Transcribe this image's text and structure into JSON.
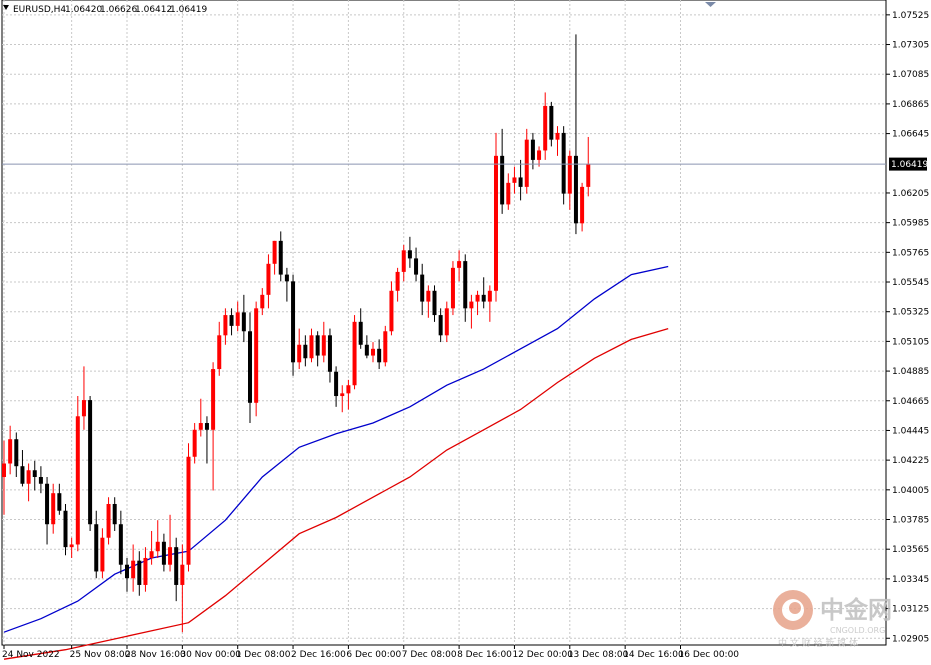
{
  "header": {
    "symbol": "EURUSD,H4",
    "open": "1.06420",
    "high": "1.06626",
    "low": "1.06412",
    "close": "1.06419"
  },
  "colors": {
    "bull": "#ff0000",
    "bear": "#000000",
    "ma_fast": "#0000cc",
    "ma_slow": "#e00000",
    "grid": "#c8c8c8",
    "bid_line": "#8a95b0"
  },
  "watermark": {
    "brand": "中金网",
    "domain": "CNGOLD.ORG",
    "tagline": "中 文 财 经 新 媒 体"
  },
  "chart_data": {
    "type": "candlestick",
    "ylim": [
      1.02855,
      1.07635
    ],
    "current_price": 1.06419,
    "current_price_label": "1.06419",
    "y_ticks": [
      {
        "label": "1.07525",
        "value": 1.07525
      },
      {
        "label": "1.07305",
        "value": 1.07305
      },
      {
        "label": "1.07085",
        "value": 1.07085
      },
      {
        "label": "1.06865",
        "value": 1.06865
      },
      {
        "label": "1.06645",
        "value": 1.06645
      },
      {
        "label": "1.06205",
        "value": 1.06205
      },
      {
        "label": "1.05985",
        "value": 1.05985
      },
      {
        "label": "1.05765",
        "value": 1.05765
      },
      {
        "label": "1.05545",
        "value": 1.05545
      },
      {
        "label": "1.05325",
        "value": 1.05325
      },
      {
        "label": "1.05105",
        "value": 1.05105
      },
      {
        "label": "1.04885",
        "value": 1.04885
      },
      {
        "label": "1.04665",
        "value": 1.04665
      },
      {
        "label": "1.04445",
        "value": 1.04445
      },
      {
        "label": "1.04225",
        "value": 1.04225
      },
      {
        "label": "1.04005",
        "value": 1.04005
      },
      {
        "label": "1.03785",
        "value": 1.03785
      },
      {
        "label": "1.03565",
        "value": 1.03565
      },
      {
        "label": "1.03345",
        "value": 1.03345
      },
      {
        "label": "1.03125",
        "value": 1.03125
      },
      {
        "label": "1.02905",
        "value": 1.02905
      }
    ],
    "x_labels": [
      {
        "label": "24 Nov 2022",
        "index": 0
      },
      {
        "label": "25 Nov 08:00",
        "index": 11
      },
      {
        "label": "28 Nov 16:00",
        "index": 20
      },
      {
        "label": "30 Nov 00:00",
        "index": 29
      },
      {
        "label": "1 Dec 08:00",
        "index": 38
      },
      {
        "label": "2 Dec 16:00",
        "index": 47
      },
      {
        "label": "6 Dec 00:00",
        "index": 56
      },
      {
        "label": "7 Dec 08:00",
        "index": 65
      },
      {
        "label": "8 Dec 16:00",
        "index": 74
      },
      {
        "label": "12 Dec 00:00",
        "index": 83
      },
      {
        "label": "13 Dec 08:00",
        "index": 92
      },
      {
        "label": "14 Dec 16:00",
        "index": 101
      },
      {
        "label": "16 Dec 00:00",
        "index": 110
      }
    ],
    "candles": [
      {
        "o": 1.041,
        "h": 1.0437,
        "l": 1.0382,
        "c": 1.042
      },
      {
        "o": 1.042,
        "h": 1.0448,
        "l": 1.0412,
        "c": 1.0438
      },
      {
        "o": 1.0438,
        "h": 1.0443,
        "l": 1.041,
        "c": 1.0418
      },
      {
        "o": 1.0418,
        "h": 1.043,
        "l": 1.0403,
        "c": 1.0405
      },
      {
        "o": 1.0405,
        "h": 1.042,
        "l": 1.0392,
        "c": 1.0415
      },
      {
        "o": 1.0415,
        "h": 1.0422,
        "l": 1.04,
        "c": 1.041
      },
      {
        "o": 1.041,
        "h": 1.0418,
        "l": 1.0398,
        "c": 1.0405
      },
      {
        "o": 1.0405,
        "h": 1.041,
        "l": 1.036,
        "c": 1.0375
      },
      {
        "o": 1.0375,
        "h": 1.0405,
        "l": 1.0368,
        "c": 1.0398
      },
      {
        "o": 1.0398,
        "h": 1.0405,
        "l": 1.0382,
        "c": 1.0385
      },
      {
        "o": 1.0385,
        "h": 1.039,
        "l": 1.0352,
        "c": 1.0358
      },
      {
        "o": 1.0358,
        "h": 1.0365,
        "l": 1.035,
        "c": 1.036
      },
      {
        "o": 1.036,
        "h": 1.047,
        "l": 1.0355,
        "c": 1.0455
      },
      {
        "o": 1.0455,
        "h": 1.0492,
        "l": 1.0445,
        "c": 1.0467
      },
      {
        "o": 1.0467,
        "h": 1.047,
        "l": 1.037,
        "c": 1.0375
      },
      {
        "o": 1.0375,
        "h": 1.0385,
        "l": 1.0335,
        "c": 1.034
      },
      {
        "o": 1.034,
        "h": 1.0372,
        "l": 1.0335,
        "c": 1.0365
      },
      {
        "o": 1.0365,
        "h": 1.0395,
        "l": 1.036,
        "c": 1.039
      },
      {
        "o": 1.039,
        "h": 1.0395,
        "l": 1.037,
        "c": 1.0375
      },
      {
        "o": 1.0375,
        "h": 1.0385,
        "l": 1.0338,
        "c": 1.0345
      },
      {
        "o": 1.0345,
        "h": 1.035,
        "l": 1.0325,
        "c": 1.0335
      },
      {
        "o": 1.0335,
        "h": 1.036,
        "l": 1.0325,
        "c": 1.0348
      },
      {
        "o": 1.0348,
        "h": 1.0355,
        "l": 1.0322,
        "c": 1.033
      },
      {
        "o": 1.033,
        "h": 1.0358,
        "l": 1.0325,
        "c": 1.035
      },
      {
        "o": 1.035,
        "h": 1.037,
        "l": 1.0345,
        "c": 1.0355
      },
      {
        "o": 1.0355,
        "h": 1.0378,
        "l": 1.035,
        "c": 1.0362
      },
      {
        "o": 1.0362,
        "h": 1.0368,
        "l": 1.034,
        "c": 1.0345
      },
      {
        "o": 1.0345,
        "h": 1.0382,
        "l": 1.034,
        "c": 1.0358
      },
      {
        "o": 1.0358,
        "h": 1.0365,
        "l": 1.0318,
        "c": 1.033
      },
      {
        "o": 1.033,
        "h": 1.036,
        "l": 1.0295,
        "c": 1.0345
      },
      {
        "o": 1.0345,
        "h": 1.0435,
        "l": 1.034,
        "c": 1.0425
      },
      {
        "o": 1.0425,
        "h": 1.045,
        "l": 1.042,
        "c": 1.0445
      },
      {
        "o": 1.0445,
        "h": 1.0468,
        "l": 1.044,
        "c": 1.045
      },
      {
        "o": 1.045,
        "h": 1.0455,
        "l": 1.042,
        "c": 1.0445
      },
      {
        "o": 1.0445,
        "h": 1.0495,
        "l": 1.04,
        "c": 1.049
      },
      {
        "o": 1.049,
        "h": 1.0525,
        "l": 1.0485,
        "c": 1.0515
      },
      {
        "o": 1.0515,
        "h": 1.0535,
        "l": 1.0508,
        "c": 1.053
      },
      {
        "o": 1.053,
        "h": 1.0535,
        "l": 1.0515,
        "c": 1.0522
      },
      {
        "o": 1.0522,
        "h": 1.054,
        "l": 1.0518,
        "c": 1.0532
      },
      {
        "o": 1.0532,
        "h": 1.0545,
        "l": 1.051,
        "c": 1.0518
      },
      {
        "o": 1.0518,
        "h": 1.0532,
        "l": 1.045,
        "c": 1.0465
      },
      {
        "o": 1.0465,
        "h": 1.054,
        "l": 1.0455,
        "c": 1.0535
      },
      {
        "o": 1.0535,
        "h": 1.055,
        "l": 1.053,
        "c": 1.0545
      },
      {
        "o": 1.0545,
        "h": 1.0575,
        "l": 1.0535,
        "c": 1.0568
      },
      {
        "o": 1.0568,
        "h": 1.0585,
        "l": 1.056,
        "c": 1.0585
      },
      {
        "o": 1.0585,
        "h": 1.0592,
        "l": 1.0555,
        "c": 1.056
      },
      {
        "o": 1.056,
        "h": 1.0565,
        "l": 1.054,
        "c": 1.0555
      },
      {
        "o": 1.0555,
        "h": 1.056,
        "l": 1.0485,
        "c": 1.0495
      },
      {
        "o": 1.0495,
        "h": 1.052,
        "l": 1.049,
        "c": 1.0508
      },
      {
        "o": 1.0508,
        "h": 1.0515,
        "l": 1.0492,
        "c": 1.0498
      },
      {
        "o": 1.0498,
        "h": 1.052,
        "l": 1.0495,
        "c": 1.0515
      },
      {
        "o": 1.0515,
        "h": 1.0518,
        "l": 1.0492,
        "c": 1.05
      },
      {
        "o": 1.05,
        "h": 1.0525,
        "l": 1.0495,
        "c": 1.0515
      },
      {
        "o": 1.0515,
        "h": 1.052,
        "l": 1.048,
        "c": 1.0488
      },
      {
        "o": 1.0488,
        "h": 1.0492,
        "l": 1.0462,
        "c": 1.047
      },
      {
        "o": 1.047,
        "h": 1.0478,
        "l": 1.0458,
        "c": 1.0472
      },
      {
        "o": 1.0472,
        "h": 1.0482,
        "l": 1.046,
        "c": 1.0478
      },
      {
        "o": 1.0478,
        "h": 1.053,
        "l": 1.0475,
        "c": 1.0525
      },
      {
        "o": 1.0525,
        "h": 1.0535,
        "l": 1.0505,
        "c": 1.0508
      },
      {
        "o": 1.0508,
        "h": 1.0515,
        "l": 1.0498,
        "c": 1.05
      },
      {
        "o": 1.05,
        "h": 1.051,
        "l": 1.0495,
        "c": 1.0505
      },
      {
        "o": 1.0505,
        "h": 1.0512,
        "l": 1.049,
        "c": 1.0495
      },
      {
        "o": 1.0495,
        "h": 1.0522,
        "l": 1.0492,
        "c": 1.0518
      },
      {
        "o": 1.0518,
        "h": 1.0555,
        "l": 1.0515,
        "c": 1.0548
      },
      {
        "o": 1.0548,
        "h": 1.0565,
        "l": 1.054,
        "c": 1.0562
      },
      {
        "o": 1.0562,
        "h": 1.0582,
        "l": 1.0555,
        "c": 1.0578
      },
      {
        "o": 1.0578,
        "h": 1.0588,
        "l": 1.0565,
        "c": 1.0572
      },
      {
        "o": 1.0572,
        "h": 1.058,
        "l": 1.0555,
        "c": 1.056
      },
      {
        "o": 1.056,
        "h": 1.0568,
        "l": 1.053,
        "c": 1.054
      },
      {
        "o": 1.054,
        "h": 1.0552,
        "l": 1.0528,
        "c": 1.0548
      },
      {
        "o": 1.0548,
        "h": 1.0552,
        "l": 1.0525,
        "c": 1.053
      },
      {
        "o": 1.053,
        "h": 1.0535,
        "l": 1.051,
        "c": 1.0515
      },
      {
        "o": 1.0515,
        "h": 1.054,
        "l": 1.051,
        "c": 1.0535
      },
      {
        "o": 1.0535,
        "h": 1.057,
        "l": 1.053,
        "c": 1.0565
      },
      {
        "o": 1.0565,
        "h": 1.0578,
        "l": 1.0555,
        "c": 1.057
      },
      {
        "o": 1.057,
        "h": 1.0575,
        "l": 1.0525,
        "c": 1.0535
      },
      {
        "o": 1.0535,
        "h": 1.0545,
        "l": 1.052,
        "c": 1.054
      },
      {
        "o": 1.054,
        "h": 1.0548,
        "l": 1.053,
        "c": 1.0545
      },
      {
        "o": 1.0545,
        "h": 1.0558,
        "l": 1.0535,
        "c": 1.054
      },
      {
        "o": 1.054,
        "h": 1.0552,
        "l": 1.0525,
        "c": 1.0548
      },
      {
        "o": 1.0548,
        "h": 1.0665,
        "l": 1.054,
        "c": 1.0648
      },
      {
        "o": 1.0648,
        "h": 1.0668,
        "l": 1.0605,
        "c": 1.0612
      },
      {
        "o": 1.0612,
        "h": 1.0635,
        "l": 1.0608,
        "c": 1.0628
      },
      {
        "o": 1.0628,
        "h": 1.064,
        "l": 1.062,
        "c": 1.0632
      },
      {
        "o": 1.0632,
        "h": 1.0645,
        "l": 1.0615,
        "c": 1.0625
      },
      {
        "o": 1.0625,
        "h": 1.0668,
        "l": 1.062,
        "c": 1.066
      },
      {
        "o": 1.066,
        "h": 1.0665,
        "l": 1.0638,
        "c": 1.0645
      },
      {
        "o": 1.0645,
        "h": 1.0655,
        "l": 1.064,
        "c": 1.0652
      },
      {
        "o": 1.0652,
        "h": 1.0695,
        "l": 1.0645,
        "c": 1.0685
      },
      {
        "o": 1.0685,
        "h": 1.0688,
        "l": 1.0655,
        "c": 1.066
      },
      {
        "o": 1.066,
        "h": 1.067,
        "l": 1.0648,
        "c": 1.0665
      },
      {
        "o": 1.0665,
        "h": 1.067,
        "l": 1.0612,
        "c": 1.062
      },
      {
        "o": 1.062,
        "h": 1.0652,
        "l": 1.0608,
        "c": 1.0648
      },
      {
        "o": 1.0648,
        "h": 1.0738,
        "l": 1.059,
        "c": 1.0598
      },
      {
        "o": 1.0598,
        "h": 1.0628,
        "l": 1.0592,
        "c": 1.0625
      },
      {
        "o": 1.0625,
        "h": 1.0662,
        "l": 1.0618,
        "c": 1.0642
      }
    ],
    "ma_fast": [
      [
        0,
        1.0295
      ],
      [
        6,
        1.0305
      ],
      [
        12,
        1.0318
      ],
      [
        18,
        1.0338
      ],
      [
        24,
        1.035
      ],
      [
        30,
        1.0355
      ],
      [
        36,
        1.0378
      ],
      [
        42,
        1.041
      ],
      [
        48,
        1.0432
      ],
      [
        54,
        1.0442
      ],
      [
        60,
        1.045
      ],
      [
        66,
        1.0462
      ],
      [
        72,
        1.0478
      ],
      [
        78,
        1.049
      ],
      [
        84,
        1.0505
      ],
      [
        90,
        1.052
      ],
      [
        96,
        1.0542
      ],
      [
        102,
        1.056
      ],
      [
        108,
        1.0566
      ]
    ],
    "ma_slow": [
      [
        0,
        1.0275
      ],
      [
        10,
        1.0282
      ],
      [
        20,
        1.0292
      ],
      [
        30,
        1.0302
      ],
      [
        36,
        1.0322
      ],
      [
        42,
        1.0345
      ],
      [
        48,
        1.0368
      ],
      [
        54,
        1.038
      ],
      [
        60,
        1.0395
      ],
      [
        66,
        1.041
      ],
      [
        72,
        1.043
      ],
      [
        78,
        1.0445
      ],
      [
        84,
        1.046
      ],
      [
        90,
        1.048
      ],
      [
        96,
        1.0498
      ],
      [
        102,
        1.0512
      ],
      [
        108,
        1.052
      ]
    ]
  }
}
